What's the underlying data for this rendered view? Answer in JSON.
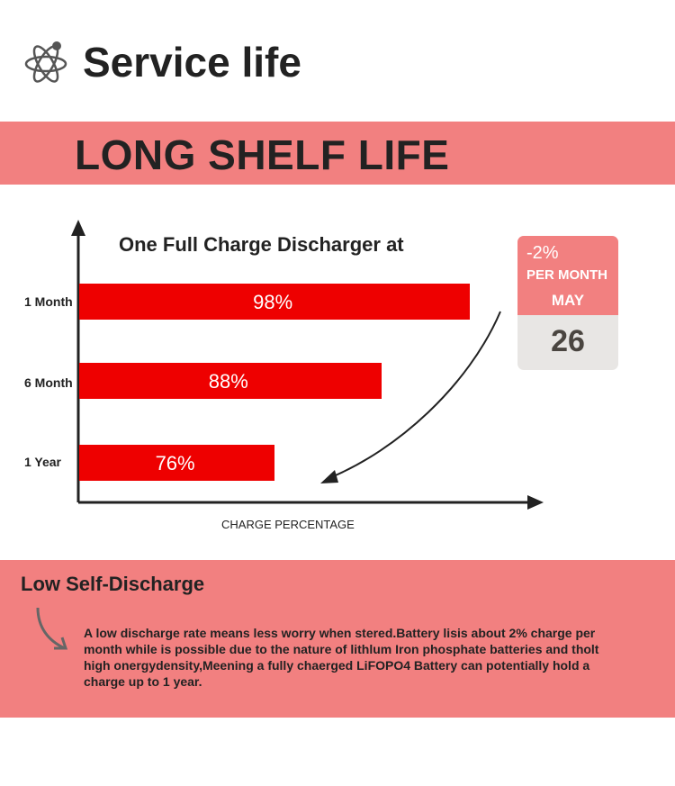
{
  "header": {
    "title": "Service life",
    "icon": "atom-icon"
  },
  "banner": {
    "title": "LONG SHELF LIFE"
  },
  "chart_data": {
    "type": "bar",
    "orientation": "horizontal",
    "title": "One Full Charge Discharger at",
    "xlabel": "CHARGE PERCENTAGE",
    "ylabel": "",
    "categories": [
      "1 Month",
      "6 Month",
      "1 Year"
    ],
    "values": [
      98,
      88,
      76
    ],
    "value_labels": [
      "98%",
      "88%",
      "76%"
    ],
    "xlim": [
      54,
      100
    ],
    "grid": false,
    "color": "#ee0000"
  },
  "card": {
    "rate": "-2%",
    "per": "PER MONTH",
    "month": "MAY",
    "day": "26"
  },
  "section": {
    "title": "Low Self-Discharge",
    "description": "A low discharge rate means less worry when stered.Battery lisis about 2% charge per month while is possible due to the nature of lithlum Iron phosphate batteries and tholt high onergydensity,Meening a fully chaerged LiFOPO4 Battery can potentially hold a charge up to 1 year."
  },
  "colors": {
    "accent": "#f28080",
    "bar": "#ee0000"
  }
}
